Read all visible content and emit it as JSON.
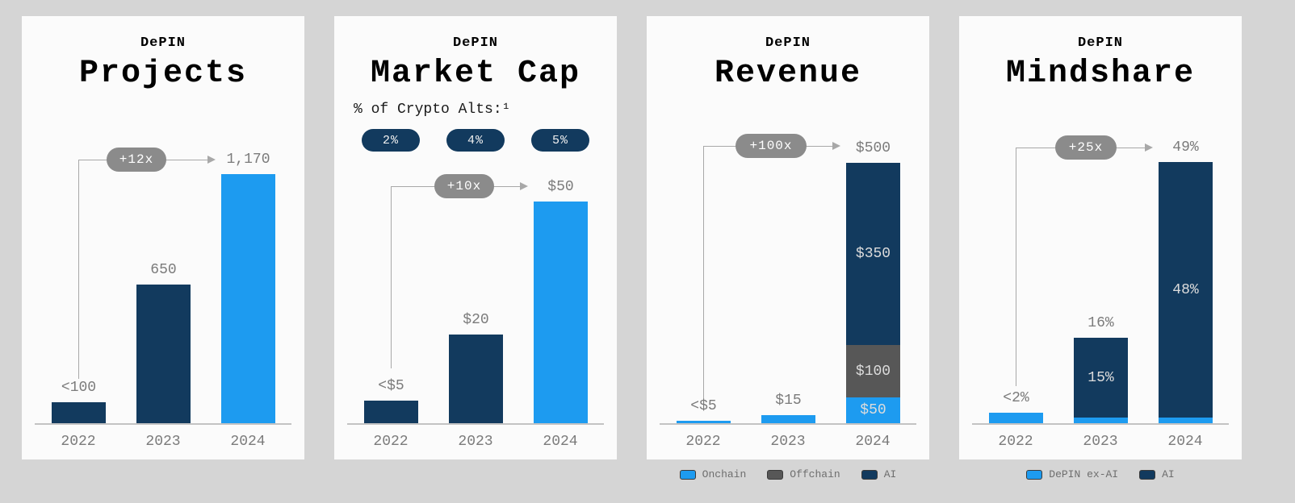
{
  "page": {
    "background": "#d5d5d5",
    "panel_background": "#fbfbfb"
  },
  "colors": {
    "navy": "#123a5e",
    "bright_blue": "#1d9bf0",
    "offchain_gray": "#575757",
    "annotation_oval": "#8b8b8b",
    "label_gray": "#7b7b7b"
  },
  "chart_data": [
    {
      "type": "bar",
      "kicker": "DePIN",
      "title": "Projects",
      "categories": [
        "2022",
        "2023",
        "2024"
      ],
      "values": [
        100,
        650,
        1170
      ],
      "value_labels": [
        "<100",
        "650",
        "1,170"
      ],
      "bar_colors": [
        "#123a5e",
        "#123a5e",
        "#1d9bf0"
      ],
      "growth_annotation": "+12x",
      "ylim": [
        0,
        1250
      ],
      "grid": false
    },
    {
      "type": "bar",
      "kicker": "DePIN",
      "title": "Market Cap",
      "subtitle": "% of Crypto Alts:¹",
      "pct_of_crypto_alts": [
        "2%",
        "4%",
        "5%"
      ],
      "categories": [
        "2022",
        "2023",
        "2024"
      ],
      "values": [
        5,
        20,
        50
      ],
      "value_labels": [
        "<$5",
        "$20",
        "$50"
      ],
      "bar_colors": [
        "#123a5e",
        "#123a5e",
        "#1d9bf0"
      ],
      "growth_annotation": "+10x",
      "ylim": [
        0,
        60
      ],
      "grid": false
    },
    {
      "type": "stacked-bar",
      "kicker": "DePIN",
      "title": "Revenue",
      "categories": [
        "2022",
        "2023",
        "2024"
      ],
      "series": [
        {
          "name": "Onchain",
          "color": "#1d9bf0",
          "values": [
            5,
            15,
            50
          ],
          "seg_labels": [
            "",
            "",
            "$50"
          ]
        },
        {
          "name": "Offchain",
          "color": "#575757",
          "values": [
            0,
            0,
            100
          ],
          "seg_labels": [
            "",
            "",
            "$100"
          ]
        },
        {
          "name": "AI",
          "color": "#123a5e",
          "values": [
            0,
            0,
            350
          ],
          "seg_labels": [
            "",
            "",
            "$350"
          ]
        }
      ],
      "total_labels": [
        "<$5",
        "$15",
        "$500"
      ],
      "growth_annotation": "+100x",
      "ylim": [
        0,
        510
      ],
      "legend": [
        "Onchain",
        "Offchain",
        "AI"
      ],
      "legend_position": "bottom",
      "grid": false
    },
    {
      "type": "stacked-bar",
      "kicker": "DePIN",
      "title": "Mindshare",
      "categories": [
        "2022",
        "2023",
        "2024"
      ],
      "series": [
        {
          "name": "DePIN ex-AI",
          "color": "#1d9bf0",
          "values": [
            2,
            1,
            1
          ],
          "seg_labels": [
            "",
            "",
            ""
          ]
        },
        {
          "name": "AI",
          "color": "#123a5e",
          "values": [
            0,
            15,
            48
          ],
          "seg_labels": [
            "",
            "15%",
            "48%"
          ]
        }
      ],
      "total_labels": [
        "<2%",
        "16%",
        "49%"
      ],
      "growth_annotation": "+25x",
      "ylim": [
        0,
        50
      ],
      "legend": [
        "DePIN ex-AI",
        "AI"
      ],
      "legend_position": "bottom",
      "grid": false
    }
  ]
}
